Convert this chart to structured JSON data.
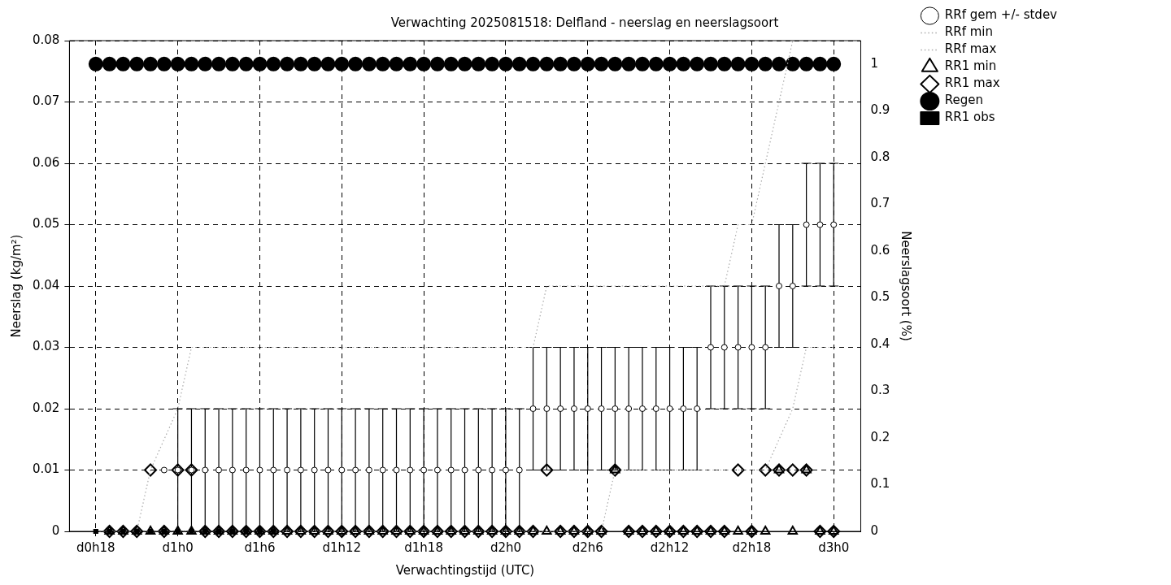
{
  "chart_data": {
    "type": "scatter",
    "title": "Verwachting 2025081518: Delfland - neerslag en neerslagsoort",
    "xlabel": "Verwachtingstijd (UTC)",
    "ylabel": "Neerslag (kg/m²)",
    "y2label": "Neerslagsoort (%)",
    "categories": [
      "d0h18",
      null,
      null,
      null,
      null,
      null,
      "d1h0",
      null,
      null,
      null,
      null,
      null,
      "d1h6",
      null,
      null,
      null,
      null,
      null,
      "d1h12",
      null,
      null,
      null,
      null,
      null,
      "d1h18",
      null,
      null,
      null,
      null,
      null,
      "d2h0",
      null,
      null,
      null,
      null,
      null,
      "d2h6",
      null,
      null,
      null,
      null,
      null,
      "d2h12",
      null,
      null,
      null,
      null,
      null,
      "d2h18",
      null,
      null,
      null,
      null,
      null,
      "d3h0"
    ],
    "ylim": [
      0,
      0.08
    ],
    "yticks": [
      0,
      0.01,
      0.02,
      0.03,
      0.04,
      0.05,
      0.06,
      0.07,
      0.08
    ],
    "y2lim": [
      0,
      1.05
    ],
    "y2ticks": [
      0,
      0.1,
      0.2,
      0.3,
      0.4,
      0.5,
      0.6,
      0.7,
      0.8,
      0.9,
      1
    ],
    "grid": true,
    "legend": "top right",
    "series": [
      {
        "name": "RRf gem +/- stdev",
        "type": "scatter",
        "marker": "circle",
        "color": "#000000",
        "values": [
          null,
          null,
          null,
          null,
          null,
          0.01,
          0.01,
          0.01,
          0.01,
          0.01,
          0.01,
          0.01,
          0.01,
          0.01,
          0.01,
          0.01,
          0.01,
          0.01,
          0.01,
          0.01,
          0.01,
          0.01,
          0.01,
          0.01,
          0.01,
          0.01,
          0.01,
          0.01,
          0.01,
          0.01,
          0.01,
          0.01,
          0.02,
          0.02,
          0.02,
          0.02,
          0.02,
          0.02,
          0.02,
          0.02,
          0.02,
          0.02,
          0.02,
          0.02,
          0.02,
          0.03,
          0.03,
          0.03,
          0.03,
          0.03,
          0.04,
          0.04,
          0.05,
          0.05,
          0.05
        ],
        "errors": [
          null,
          null,
          null,
          null,
          null,
          null,
          0.01,
          0.01,
          0.01,
          0.01,
          0.01,
          0.01,
          0.01,
          0.01,
          0.01,
          0.01,
          0.01,
          0.01,
          0.01,
          0.01,
          0.01,
          0.01,
          0.01,
          0.01,
          0.01,
          0.01,
          0.01,
          0.01,
          0.01,
          0.01,
          0.01,
          0.01,
          0.01,
          0.01,
          0.01,
          0.01,
          0.01,
          0.01,
          0.01,
          0.01,
          0.01,
          0.01,
          0.01,
          0.01,
          0.01,
          0.01,
          0.01,
          0.01,
          0.01,
          0.01,
          0.01,
          0.01,
          0.01,
          0.01,
          0.01
        ]
      },
      {
        "name": "RRf min",
        "type": "line",
        "marker": "none",
        "line_style": "dotted",
        "color": "#aaaaaa",
        "values": [
          0,
          0,
          0,
          0,
          0,
          0,
          0,
          0,
          0,
          0,
          0,
          0,
          0,
          0,
          0,
          0,
          0,
          0,
          0,
          0,
          0,
          0,
          0,
          0,
          0,
          0,
          0,
          0,
          0,
          0,
          0,
          0,
          0,
          0,
          0,
          0,
          0,
          0,
          0.01,
          0.01,
          0.01,
          0.01,
          0.01,
          0.01,
          0.01,
          0.01,
          0.01,
          0.01,
          0.01,
          0.01,
          0.015,
          0.02,
          0.03,
          0.03,
          0.03
        ]
      },
      {
        "name": "RRf max",
        "type": "line",
        "marker": "none",
        "line_style": "dotted",
        "color": "#aaaaaa",
        "values": [
          0,
          0,
          0,
          0,
          0.01,
          0.015,
          0.02,
          0.03,
          0.03,
          0.03,
          0.03,
          0.03,
          0.03,
          0.03,
          0.03,
          0.03,
          0.03,
          0.03,
          0.03,
          0.03,
          0.03,
          0.03,
          0.03,
          0.03,
          0.03,
          0.03,
          0.03,
          0.03,
          0.03,
          0.03,
          0.03,
          0.03,
          0.03,
          0.04,
          0.04,
          0.04,
          0.04,
          0.04,
          0.04,
          0.04,
          0.04,
          0.04,
          0.04,
          0.04,
          0.04,
          0.04,
          0.04,
          0.05,
          0.05,
          0.06,
          0.07,
          0.08,
          null,
          null,
          null
        ]
      },
      {
        "name": "RR1 min",
        "type": "scatter",
        "marker": "triangle",
        "color": "#000000",
        "values": [
          null,
          0,
          0,
          0,
          0,
          0,
          0,
          0,
          0,
          0,
          0,
          0,
          0,
          0,
          0,
          0,
          0,
          0,
          0,
          0,
          0,
          0,
          0,
          0,
          0,
          0,
          0,
          0,
          0,
          0,
          0,
          0,
          0,
          0,
          0,
          0,
          0,
          0,
          0.01,
          0,
          0,
          0,
          0,
          0,
          0,
          0,
          0,
          0,
          0,
          0,
          0.01,
          0,
          0.01,
          0,
          0
        ]
      },
      {
        "name": "RR1 max",
        "type": "scatter",
        "marker": "diamond",
        "color": "#000000",
        "values": [
          null,
          0,
          0,
          0,
          0.01,
          0,
          0.01,
          0.01,
          0,
          0,
          0,
          0,
          0,
          0,
          0,
          0,
          0,
          0,
          0,
          0,
          0,
          0,
          0,
          0,
          0,
          0,
          0,
          0,
          0,
          0,
          0,
          0,
          0,
          0.01,
          0,
          0,
          0,
          0,
          0.01,
          0,
          0,
          0,
          0,
          0,
          0,
          0,
          0,
          0.01,
          0,
          0.01,
          0.01,
          0.01,
          0.01,
          0,
          0
        ]
      },
      {
        "name": "Regen",
        "type": "scatter",
        "marker": "circle",
        "axis": "y2",
        "color": "#000000",
        "values": [
          1,
          1,
          1,
          1,
          1,
          1,
          1,
          1,
          1,
          1,
          1,
          1,
          1,
          1,
          1,
          1,
          1,
          1,
          1,
          1,
          1,
          1,
          1,
          1,
          1,
          1,
          1,
          1,
          1,
          1,
          1,
          1,
          1,
          1,
          1,
          1,
          1,
          1,
          1,
          1,
          1,
          1,
          1,
          1,
          1,
          1,
          1,
          1,
          1,
          1,
          1,
          1,
          1,
          1,
          1
        ]
      },
      {
        "name": "RR1 obs",
        "type": "line",
        "marker": "square",
        "line_style": "dotted",
        "color": "#000000",
        "values": [
          0,
          0,
          0,
          0,
          0,
          0,
          0,
          0,
          0,
          0,
          0,
          0,
          0,
          0,
          null,
          null,
          null,
          null,
          null,
          null,
          null,
          null,
          null,
          null,
          null,
          null,
          null,
          null,
          null,
          null,
          null,
          null,
          null,
          null,
          null,
          null,
          null,
          null,
          null,
          null,
          null,
          null,
          null,
          null,
          null,
          null,
          null,
          null,
          null,
          null,
          null,
          null,
          null,
          null,
          null
        ]
      }
    ]
  }
}
